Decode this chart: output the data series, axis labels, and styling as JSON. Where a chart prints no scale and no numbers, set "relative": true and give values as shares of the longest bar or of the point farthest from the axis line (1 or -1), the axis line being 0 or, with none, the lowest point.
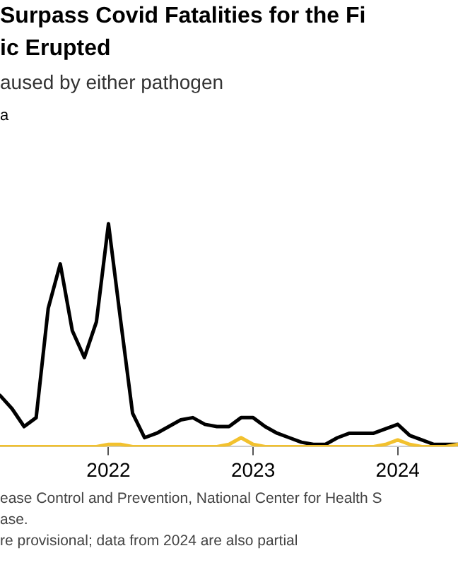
{
  "chart_data": {
    "type": "line",
    "title": "Surpass Covid Fatalities for the Fi\nic Erupted",
    "subtitle": "aused by either pathogen",
    "annotations": [
      "a",
      "ease Control and Prevention, National Center for Health S\nase.",
      "re provisional; data from 2024 are also partial"
    ],
    "relative": true,
    "x": [
      "2021-04",
      "2021-05",
      "2021-06",
      "2021-07",
      "2021-08",
      "2021-09",
      "2021-10",
      "2021-11",
      "2021-12",
      "2022-01",
      "2022-02",
      "2022-03",
      "2022-04",
      "2022-05",
      "2022-06",
      "2022-07",
      "2022-08",
      "2022-09",
      "2022-10",
      "2022-11",
      "2022-12",
      "2023-01",
      "2023-02",
      "2023-03",
      "2023-04",
      "2023-05",
      "2023-06",
      "2023-07",
      "2023-08",
      "2023-09",
      "2023-10",
      "2023-11",
      "2023-12",
      "2024-01",
      "2024-02",
      "2024-03",
      "2024-04",
      "2024-05",
      "2024-06"
    ],
    "xlim": [
      "2021-04",
      "2024-06"
    ],
    "xticks": [
      "2022",
      "2023",
      "2024"
    ],
    "series": [
      {
        "color": "#000000",
        "values": [
          0.23,
          0.17,
          0.09,
          0.13,
          0.62,
          0.82,
          0.52,
          0.4,
          0.56,
          1,
          0.57,
          0.15,
          0.04,
          0.06,
          0.09,
          0.12,
          0.13,
          0.1,
          0.09,
          0.09,
          0.13,
          0.13,
          0.09,
          0.06,
          0.04,
          0.02,
          0.01,
          0.01,
          0.04,
          0.06,
          0.06,
          0.06,
          0.08,
          0.1,
          0.05,
          0.03,
          0.01,
          0.01,
          0.01
        ]
      },
      {
        "color": "#f2c12e",
        "values": [
          0,
          0,
          0,
          0,
          0,
          0,
          0,
          0,
          0,
          0.01,
          0.01,
          0,
          0,
          0,
          0,
          0,
          0,
          0,
          0,
          0.01,
          0.04,
          0.01,
          0,
          0,
          0,
          0,
          0,
          0,
          0,
          0,
          0,
          0,
          0.01,
          0.03,
          0.01,
          0,
          0,
          0,
          0.01
        ]
      }
    ],
    "legend": false,
    "marker": "none",
    "line_style": "solid",
    "grid": false
  }
}
